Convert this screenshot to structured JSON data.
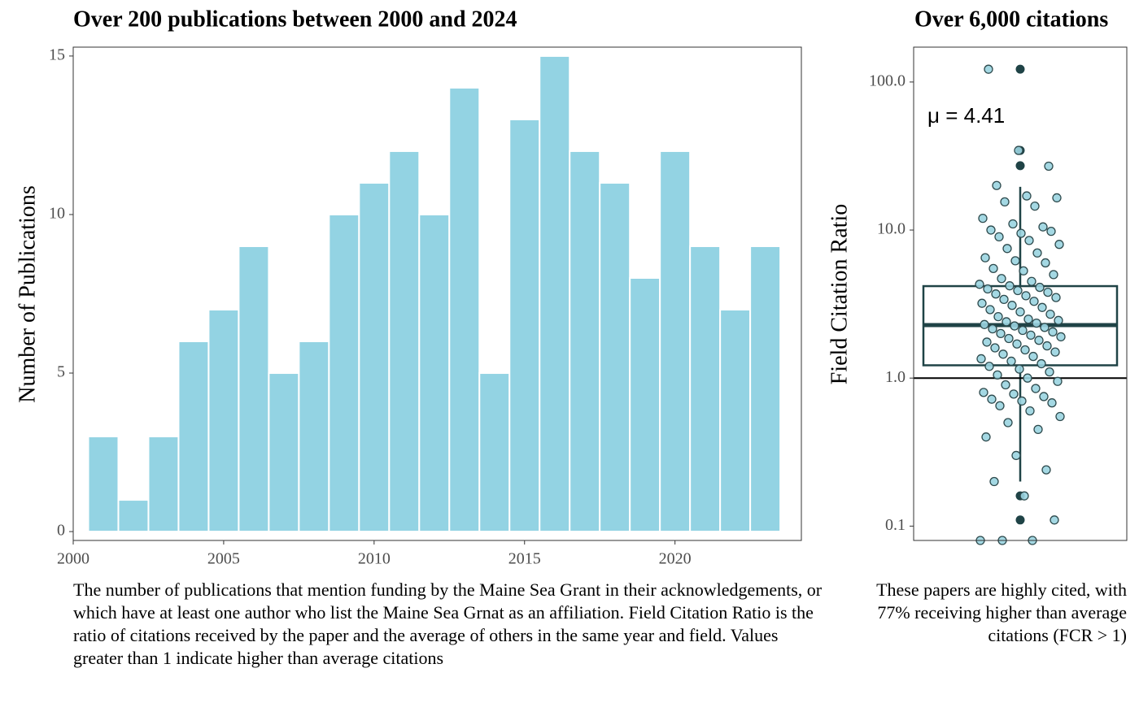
{
  "chart_data": [
    {
      "type": "bar",
      "title": "Over 200 publications between 2000 and 2024",
      "ylabel": "Number of Publications",
      "x": [
        2001,
        2002,
        2003,
        2004,
        2005,
        2006,
        2007,
        2008,
        2009,
        2010,
        2011,
        2012,
        2013,
        2014,
        2015,
        2016,
        2017,
        2018,
        2019,
        2020,
        2021,
        2022,
        2023
      ],
      "values": [
        3,
        1,
        3,
        6,
        7,
        9,
        5,
        6,
        10,
        11,
        12,
        10,
        14,
        5,
        13,
        15,
        12,
        11,
        8,
        12,
        9,
        7,
        9
      ],
      "color": "#93d3e3",
      "xlim": [
        2000,
        2024.2
      ],
      "xticks": [
        2000,
        2005,
        2010,
        2015,
        2020
      ],
      "ylim": [
        -0.28,
        15.28
      ],
      "yticks": [
        0,
        5,
        10,
        15
      ],
      "caption": "The number of publications that mention funding by the Maine Sea Grant in their acknowledgements, or which have at least one author who list the Maine Sea Grnat as an affiliation. Field Citation Ratio is the ratio of citations received by the paper and the average of others in the same year and field. Values greater than 1 indicate higher than average citations"
    },
    {
      "type": "box",
      "title": "Over 6,000 citations",
      "ylabel": "Field Citation Ratio",
      "log_scale": true,
      "ylim": [
        0.08,
        172
      ],
      "yticks": [
        {
          "value": 100,
          "label": "100.0"
        },
        {
          "value": 10,
          "label": "10.0"
        },
        {
          "value": 1,
          "label": "1.0"
        },
        {
          "value": 0.1,
          "label": "0.1"
        }
      ],
      "box": {
        "whisker_low": 0.2,
        "q1": 1.22,
        "median": 2.28,
        "q3": 4.18,
        "whisker_high": 19.6
      },
      "outliers": [
        122,
        34.5,
        27.2,
        0.16,
        0.11
      ],
      "points": [
        122,
        34.5,
        27,
        20,
        17,
        16.5,
        15.5,
        14.5,
        12,
        11,
        10.5,
        10,
        9.5,
        9.8,
        9,
        8.5,
        8,
        7.5,
        7,
        6.5,
        6.2,
        6,
        5.5,
        5.3,
        5,
        4.7,
        4.5,
        4.3,
        4.2,
        4.1,
        4,
        3.9,
        3.8,
        3.7,
        3.6,
        3.5,
        3.4,
        3.3,
        3.2,
        3.1,
        3,
        2.9,
        2.8,
        2.7,
        2.6,
        2.5,
        2.45,
        2.4,
        2.35,
        2.3,
        2.25,
        2.2,
        2.15,
        2.1,
        2.05,
        2,
        1.95,
        1.9,
        1.85,
        1.8,
        1.75,
        1.7,
        1.65,
        1.6,
        1.55,
        1.5,
        1.45,
        1.4,
        1.35,
        1.3,
        1.25,
        1.2,
        1.15,
        1.1,
        1.05,
        1.0,
        0.95,
        0.9,
        0.85,
        0.8,
        0.78,
        0.75,
        0.72,
        0.7,
        0.68,
        0.65,
        0.6,
        0.55,
        0.5,
        0.45,
        0.4,
        0.3,
        0.24,
        0.2,
        0.16,
        0.11,
        0.08,
        0.08,
        0.08
      ],
      "point_color": "#9ad4e0",
      "box_color": "#1f4346",
      "reference_line": 1,
      "mean_label": "μ = 4.41",
      "caption": "These papers are highly cited, with 77% receiving higher than average citations (FCR > 1)"
    }
  ]
}
